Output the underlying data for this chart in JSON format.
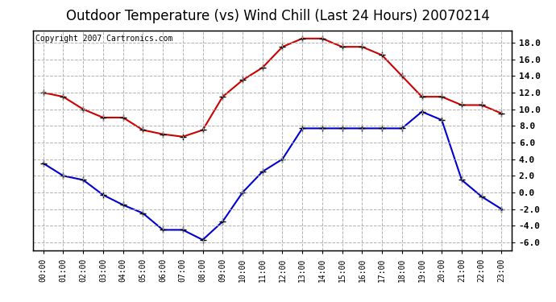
{
  "title": "Outdoor Temperature (vs) Wind Chill (Last 24 Hours) 20070214",
  "copyright": "Copyright 2007 Cartronics.com",
  "hours": [
    "00:00",
    "01:00",
    "02:00",
    "03:00",
    "04:00",
    "05:00",
    "06:00",
    "07:00",
    "08:00",
    "09:00",
    "10:00",
    "11:00",
    "12:00",
    "13:00",
    "14:00",
    "15:00",
    "16:00",
    "17:00",
    "18:00",
    "19:00",
    "20:00",
    "21:00",
    "22:00",
    "23:00"
  ],
  "temp": [
    12.0,
    11.5,
    10.0,
    9.0,
    9.0,
    7.5,
    7.0,
    6.7,
    7.5,
    11.5,
    13.5,
    15.0,
    17.5,
    18.5,
    18.5,
    17.5,
    17.5,
    16.5,
    14.0,
    11.5,
    11.5,
    10.5,
    10.5,
    9.5
  ],
  "wind_chill": [
    3.5,
    2.0,
    1.5,
    -0.3,
    -1.5,
    -2.5,
    -4.5,
    -4.5,
    -5.7,
    -3.5,
    0.0,
    2.5,
    4.0,
    7.7,
    7.7,
    7.7,
    7.7,
    7.7,
    7.7,
    9.7,
    8.7,
    1.5,
    -0.5,
    -2.0
  ],
  "temp_color": "#cc0000",
  "wind_chill_color": "#0000cc",
  "background_color": "#ffffff",
  "plot_background": "#ffffff",
  "grid_color": "#aaaaaa",
  "ylim": [
    -7.0,
    19.5
  ],
  "yticks_right": [
    18.0,
    16.0,
    14.0,
    12.0,
    10.0,
    8.0,
    6.0,
    4.0,
    2.0,
    0.0,
    -2.0,
    -4.0,
    -6.0
  ],
  "title_fontsize": 12,
  "copyright_fontsize": 7,
  "marker": "+",
  "markersize": 6,
  "linewidth": 1.5
}
